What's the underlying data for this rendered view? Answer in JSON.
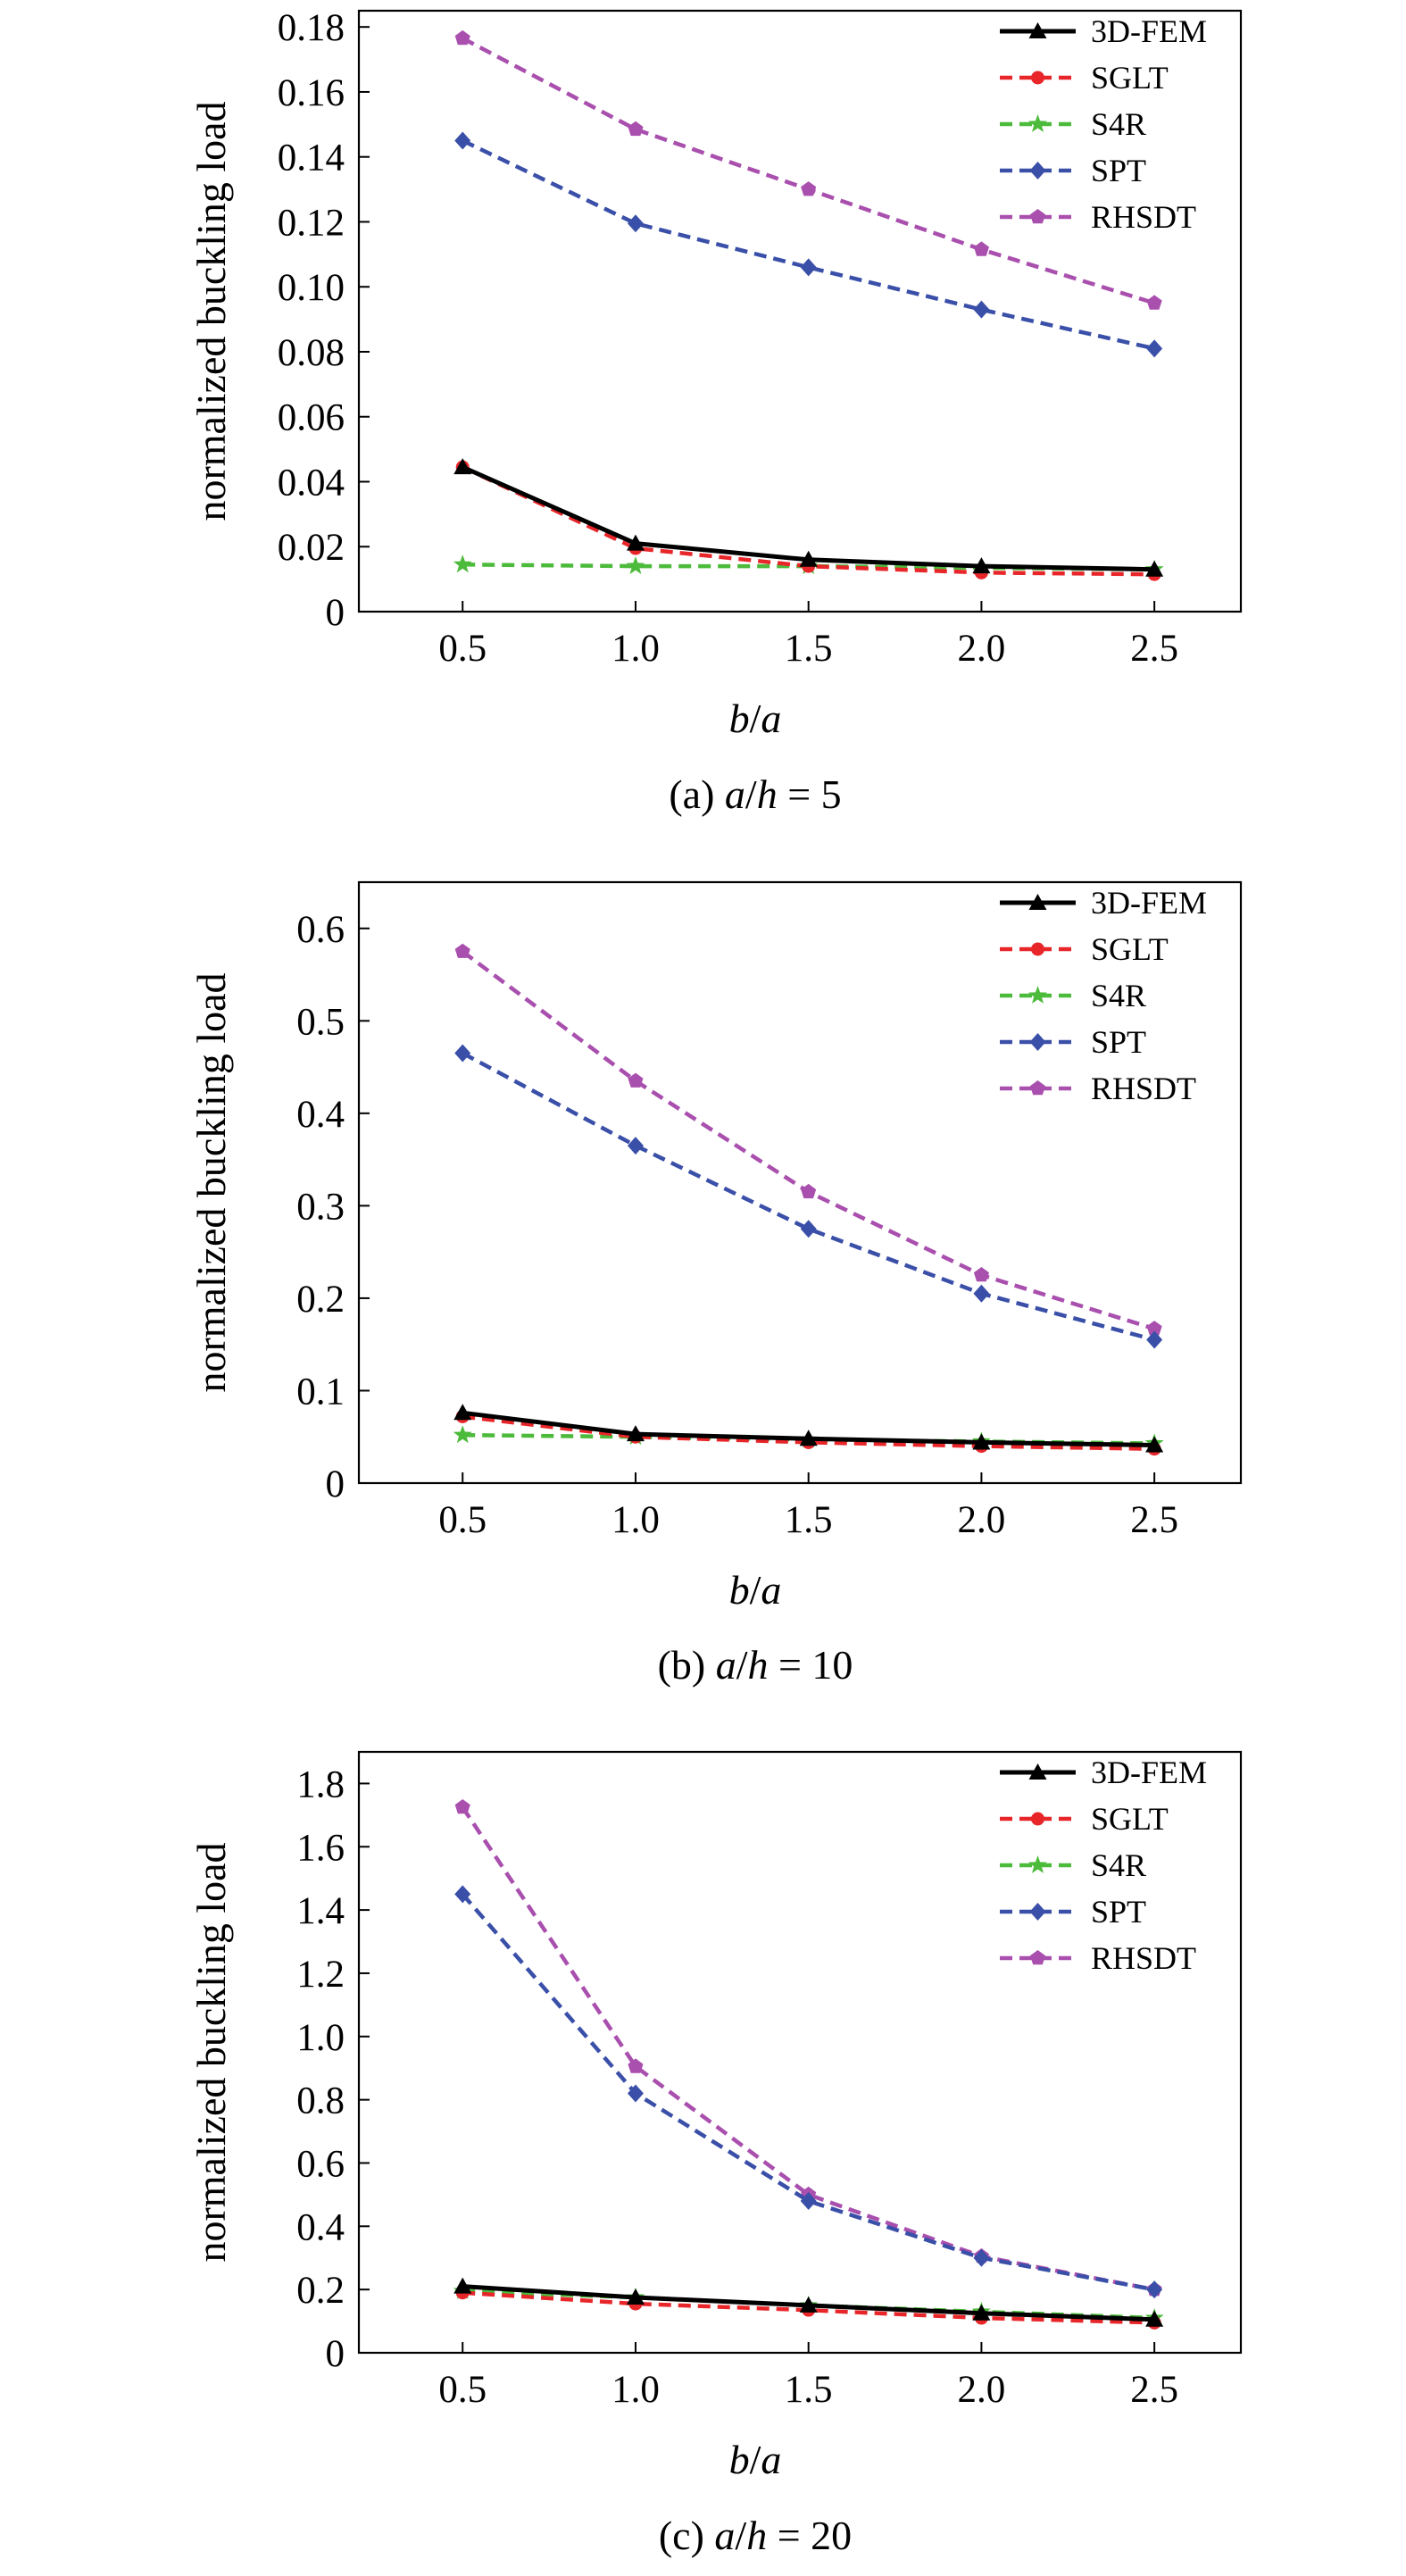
{
  "chart_data": [
    {
      "type": "line",
      "caption": {
        "prefix": "(a) ",
        "num": "a",
        "slash": "/",
        "den": "h",
        "suffix": " = 5"
      },
      "xlabel": {
        "num": "b",
        "slash": "/",
        "den": "a"
      },
      "ylabel": "normalized buckling load",
      "categories": [
        "0.5",
        "1.0",
        "1.5",
        "2.0",
        "2.5"
      ],
      "x": [
        0.5,
        1.0,
        1.5,
        2.0,
        2.5
      ],
      "xlim": [
        0.2,
        2.75
      ],
      "ylim": [
        0,
        0.185
      ],
      "yticks": [
        0,
        0.02,
        0.04,
        0.06,
        0.08,
        0.1,
        0.12,
        0.14,
        0.16,
        0.18
      ],
      "ytick_labels": [
        "0",
        "0.02",
        "0.04",
        "0.06",
        "0.08",
        "0.10",
        "0.12",
        "0.14",
        "0.16",
        "0.18"
      ],
      "grid": false,
      "legend_position": "top-right",
      "series": [
        {
          "name": "3D-FEM",
          "values": [
            0.0445,
            0.021,
            0.016,
            0.014,
            0.013
          ]
        },
        {
          "name": "SGLT",
          "values": [
            0.0445,
            0.0195,
            0.014,
            0.012,
            0.0115
          ]
        },
        {
          "name": "S4R",
          "values": [
            0.0145,
            0.014,
            0.014,
            0.0135,
            0.013
          ]
        },
        {
          "name": "SPT",
          "values": [
            0.145,
            0.1195,
            0.106,
            0.093,
            0.081
          ]
        },
        {
          "name": "RHSDT",
          "values": [
            0.1765,
            0.1485,
            0.13,
            0.1115,
            0.095
          ]
        }
      ]
    },
    {
      "type": "line",
      "caption": {
        "prefix": "(b) ",
        "num": "a",
        "slash": "/",
        "den": "h",
        "suffix": " = 10"
      },
      "xlabel": {
        "num": "b",
        "slash": "/",
        "den": "a"
      },
      "ylabel": "normalized buckling load",
      "categories": [
        "0.5",
        "1.0",
        "1.5",
        "2.0",
        "2.5"
      ],
      "x": [
        0.5,
        1.0,
        1.5,
        2.0,
        2.5
      ],
      "xlim": [
        0.2,
        2.75
      ],
      "ylim": [
        0,
        0.65
      ],
      "yticks": [
        0,
        0.1,
        0.2,
        0.3,
        0.4,
        0.5,
        0.6
      ],
      "ytick_labels": [
        "0",
        "0.1",
        "0.2",
        "0.3",
        "0.4",
        "0.5",
        "0.6"
      ],
      "grid": false,
      "legend_position": "top-right",
      "series": [
        {
          "name": "3D-FEM",
          "values": [
            0.076,
            0.053,
            0.048,
            0.044,
            0.041
          ]
        },
        {
          "name": "SGLT",
          "values": [
            0.072,
            0.05,
            0.044,
            0.04,
            0.037
          ]
        },
        {
          "name": "S4R",
          "values": [
            0.052,
            0.05,
            0.047,
            0.045,
            0.043
          ]
        },
        {
          "name": "SPT",
          "values": [
            0.465,
            0.365,
            0.275,
            0.205,
            0.155
          ]
        },
        {
          "name": "RHSDT",
          "values": [
            0.575,
            0.435,
            0.315,
            0.225,
            0.167
          ]
        }
      ]
    },
    {
      "type": "line",
      "caption": {
        "prefix": "(c) ",
        "num": "a",
        "slash": "/",
        "den": "h",
        "suffix": " = 20"
      },
      "xlabel": {
        "num": "b",
        "slash": "/",
        "den": "a"
      },
      "ylabel": "normalized buckling load",
      "categories": [
        "0.5",
        "1.0",
        "1.5",
        "2.0",
        "2.5"
      ],
      "x": [
        0.5,
        1.0,
        1.5,
        2.0,
        2.5
      ],
      "xlim": [
        0.2,
        2.75
      ],
      "ylim": [
        0,
        1.9
      ],
      "yticks": [
        0,
        0.2,
        0.4,
        0.6,
        0.8,
        1.0,
        1.2,
        1.4,
        1.6,
        1.8
      ],
      "ytick_labels": [
        "0",
        "0.2",
        "0.4",
        "0.6",
        "0.8",
        "1.0",
        "1.2",
        "1.4",
        "1.6",
        "1.8"
      ],
      "grid": false,
      "legend_position": "top-right",
      "series": [
        {
          "name": "3D-FEM",
          "values": [
            0.21,
            0.175,
            0.15,
            0.125,
            0.105
          ]
        },
        {
          "name": "SGLT",
          "values": [
            0.19,
            0.155,
            0.135,
            0.11,
            0.095
          ]
        },
        {
          "name": "S4R",
          "values": [
            0.195,
            0.175,
            0.15,
            0.13,
            0.11
          ]
        },
        {
          "name": "SPT",
          "values": [
            1.45,
            0.82,
            0.48,
            0.3,
            0.2
          ]
        },
        {
          "name": "RHSDT",
          "values": [
            1.725,
            0.905,
            0.5,
            0.305,
            0.2
          ]
        }
      ]
    }
  ],
  "series_styles": [
    {
      "name": "3D-FEM",
      "color": "#000000",
      "dash": "solid",
      "marker": "triangle"
    },
    {
      "name": "SGLT",
      "color": "#e8262a",
      "dash": "dashed",
      "marker": "circle"
    },
    {
      "name": "S4R",
      "color": "#4cba3a",
      "dash": "dashed",
      "marker": "star"
    },
    {
      "name": "SPT",
      "color": "#3a4fa8",
      "dash": "dashed",
      "marker": "diamond"
    },
    {
      "name": "RHSDT",
      "color": "#a94fae",
      "dash": "dashed",
      "marker": "pentagon"
    }
  ]
}
